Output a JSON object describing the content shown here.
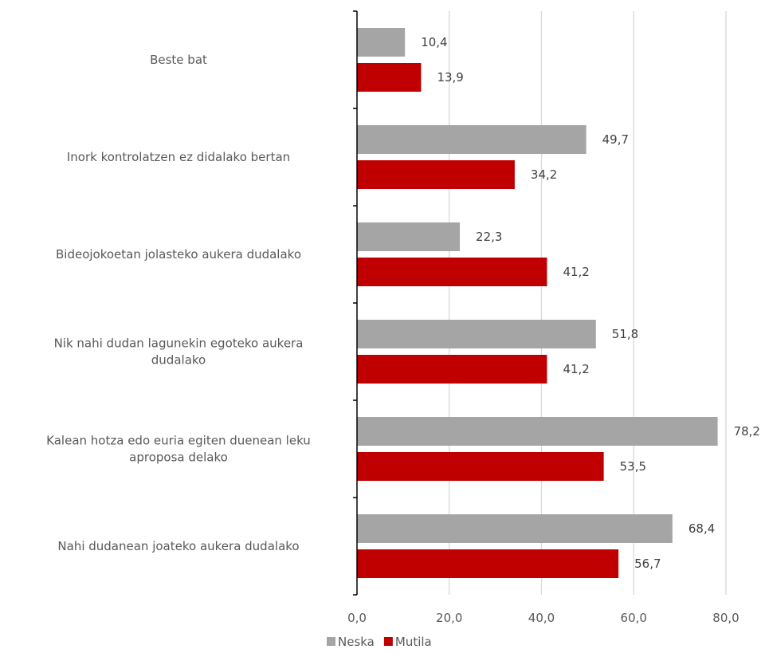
{
  "chart_data": {
    "type": "bar",
    "orientation": "horizontal",
    "categories": [
      "Beste bat",
      "Inork kontrolatzen ez didalako bertan",
      "Bideojokoetan jolasteko aukera dudalako",
      "Nik nahi dudan lagunekin egoteko aukera dudalako",
      "Kalean hotza edo euria egiten duenean leku aproposa delako",
      "Nahi dudanean joateko aukera dudalako"
    ],
    "category_lines": [
      [
        "Beste bat"
      ],
      [
        "Inork kontrolatzen ez didalako bertan"
      ],
      [
        "Bideojokoetan jolasteko aukera dudalako"
      ],
      [
        "Nik nahi dudan lagunekin egoteko aukera",
        "dudalako"
      ],
      [
        "Kalean hotza edo euria egiten duenean leku",
        "aproposa delako"
      ],
      [
        "Nahi dudanean joateko aukera dudalako"
      ]
    ],
    "series": [
      {
        "name": "Neska",
        "color": "#a5a5a5",
        "values": [
          10.4,
          49.7,
          22.3,
          51.8,
          78.2,
          68.4
        ],
        "labels": [
          "10,4",
          "49,7",
          "22,3",
          "51,8",
          "78,2",
          "68,4"
        ]
      },
      {
        "name": "Mutila",
        "color": "#c00000",
        "values": [
          13.9,
          34.2,
          41.2,
          41.2,
          53.5,
          56.7
        ],
        "labels": [
          "13,9",
          "34,2",
          "41,2",
          "41,2",
          "53,5",
          "56,7"
        ]
      }
    ],
    "xlim": [
      0,
      80
    ],
    "xticks": [
      0,
      20,
      40,
      60,
      80
    ],
    "xtick_labels": [
      "0,0",
      "20,0",
      "40,0",
      "60,0",
      "80,0"
    ],
    "gridlines": true,
    "legend_position": "bottom",
    "title": "",
    "xlabel": "",
    "ylabel": ""
  }
}
